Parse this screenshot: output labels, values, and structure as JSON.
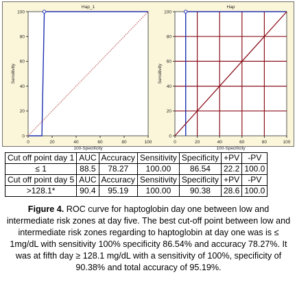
{
  "chart_data": [
    {
      "type": "line",
      "title": "Hap_1",
      "xlabel": "100-Specificity",
      "ylabel": "Sensitivity",
      "xlim": [
        0,
        100
      ],
      "ylim": [
        0,
        100
      ],
      "xticks": [
        "0",
        "20",
        "40",
        "60",
        "80",
        "100"
      ],
      "yticks": [
        "0",
        "20",
        "40",
        "60",
        "80",
        "100"
      ],
      "grid": false,
      "series": [
        {
          "role": "roc",
          "x": [
            0,
            11.5,
            13.46,
            13.46,
            100
          ],
          "y": [
            0,
            0,
            100,
            100,
            100
          ],
          "color": "#1f2fb0"
        },
        {
          "role": "reference",
          "x": [
            0,
            100
          ],
          "y": [
            0,
            100
          ],
          "color": "#c06a6a"
        }
      ],
      "cutoff_point": {
        "x": 13.46,
        "y": 100
      }
    },
    {
      "type": "line",
      "title": "Hap",
      "xlabel": "100-Specificity",
      "ylabel": "Sensitivity",
      "xlim": [
        0,
        100
      ],
      "ylim": [
        0,
        100
      ],
      "xticks": [
        "0",
        "20",
        "40",
        "60",
        "80",
        "100"
      ],
      "yticks": [
        "0",
        "20",
        "40",
        "60",
        "80",
        "100"
      ],
      "grid": true,
      "series": [
        {
          "role": "roc",
          "x": [
            9.62,
            9.62,
            100
          ],
          "y": [
            0,
            100,
            100
          ],
          "color": "#1f2fb0"
        },
        {
          "role": "reference",
          "x": [
            0,
            100
          ],
          "y": [
            0,
            100
          ],
          "color": "#8a0f1a"
        }
      ],
      "cutoff_point": {
        "x": 9.62,
        "y": 100
      }
    }
  ],
  "table": {
    "header1": [
      "Cut off point day 1",
      "AUC",
      "Accuracy",
      "Sensitivity",
      "Specificity",
      "+PV",
      "-PV"
    ],
    "row1": [
      "≤ 1",
      "88.5",
      "78.27",
      "100.00",
      "86.54",
      "22.2",
      "100.0"
    ],
    "header2": [
      "Cut off point day 5",
      "AUC",
      "Accuracy",
      "Sensitivity",
      "Specificity",
      "+PV",
      "-PV"
    ],
    "row2": [
      ">128.1*",
      "90.4",
      "95.19",
      "100.00",
      "90.38",
      "28.6",
      "100.0"
    ]
  },
  "caption": {
    "label": "Figure 4.",
    "text": " ROC curve for haptoglobin day one between low and intermediate risk zones at day five. The best cut-off point between low and intermediate risk zones regarding to haptoglobin at day one was is ≤ 1mg/dL with sensitivity 100% specificity 86.54% and accuracy 78.27%. It was at fifth day ≥ 128.1 mg/dL with a sensitivity of 100%, specificity of 90.38% and total accuracy of 95.19%."
  },
  "colors": {
    "panel_background": "#fbf6d9",
    "plot1_background": "#ffffff",
    "plot2_background": "#ffffff",
    "grid_color": "#8a0f1a",
    "roc_color": "#1f2fb0"
  }
}
